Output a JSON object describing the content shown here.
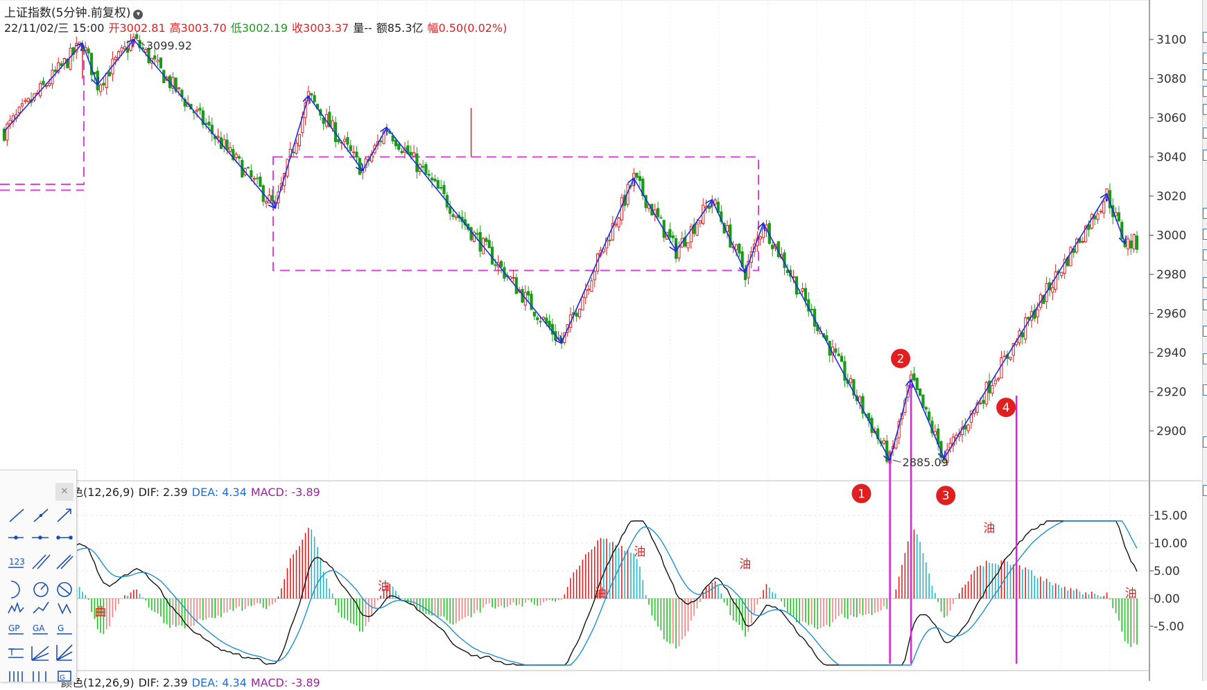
{
  "header": {
    "title": "上证指数(5分钟.前复权)",
    "datetime": "22/11/02/三 15:00",
    "open_label": "开",
    "open": "3002.81",
    "high_label": "高",
    "high": "3003.70",
    "low_label": "低",
    "low": "3002.19",
    "close_label": "收",
    "close": "3003.37",
    "volume_label": "量--",
    "amount_label": "额",
    "amount": "85.3亿",
    "change_label": "幅",
    "change": "0.50(0.02%)"
  },
  "macd_legend": {
    "name": "颜色(12,26,9)",
    "dif": "DIF: 2.39",
    "dea": "DEA: 4.34",
    "macd": "MACD: -3.89"
  },
  "colors": {
    "up": "#e02020",
    "down": "#1a9a1a",
    "zigzag": "#1a2ee0",
    "box": "#e040e0",
    "dif": "#111111",
    "dea": "#1a8fd6",
    "macd_pos_strong": "#e02020",
    "macd_pos_weak": "#20b8c8",
    "macd_neg_strong": "#20c020",
    "macd_neg_weak": "#f08080"
  },
  "chart_data": [
    {
      "type": "candlestick",
      "ylim": [
        2870,
        3110
      ],
      "yticks": [
        "3100",
        "3080",
        "3060",
        "3040",
        "3020",
        "3000",
        "2980",
        "2960",
        "2940",
        "2920",
        "2900"
      ],
      "zigzag": [
        {
          "i": 0,
          "v": 3053
        },
        {
          "i": 26,
          "v": 3098
        },
        {
          "i": 31,
          "v": 3077
        },
        {
          "i": 43,
          "v": 3099.92
        },
        {
          "i": 90,
          "v": 3014
        },
        {
          "i": 101,
          "v": 3071
        },
        {
          "i": 119,
          "v": 3033
        },
        {
          "i": 127,
          "v": 3055
        },
        {
          "i": 185,
          "v": 2945
        },
        {
          "i": 209,
          "v": 3029
        },
        {
          "i": 223,
          "v": 2992
        },
        {
          "i": 235,
          "v": 3018
        },
        {
          "i": 246,
          "v": 2981
        },
        {
          "i": 252,
          "v": 3006
        },
        {
          "i": 294,
          "v": 2885.09
        },
        {
          "i": 301,
          "v": 2926
        },
        {
          "i": 312,
          "v": 2886
        },
        {
          "i": 366,
          "v": 3021
        },
        {
          "i": 372,
          "v": 2996
        }
      ],
      "candle_count": 377,
      "annotations": [
        "3099.92",
        "2885.09"
      ],
      "markers": [
        "1",
        "2",
        "3",
        "4"
      ]
    },
    {
      "type": "bar",
      "name": "颜色(12,26,9)",
      "ylim": [
        -25,
        25
      ],
      "yticks": [
        "15.00",
        "10.00",
        "5.00",
        "0.00",
        "-5.00"
      ],
      "signal_labels": [
        "曲",
        "油",
        "油",
        "油",
        "油",
        "油",
        "油"
      ]
    }
  ]
}
